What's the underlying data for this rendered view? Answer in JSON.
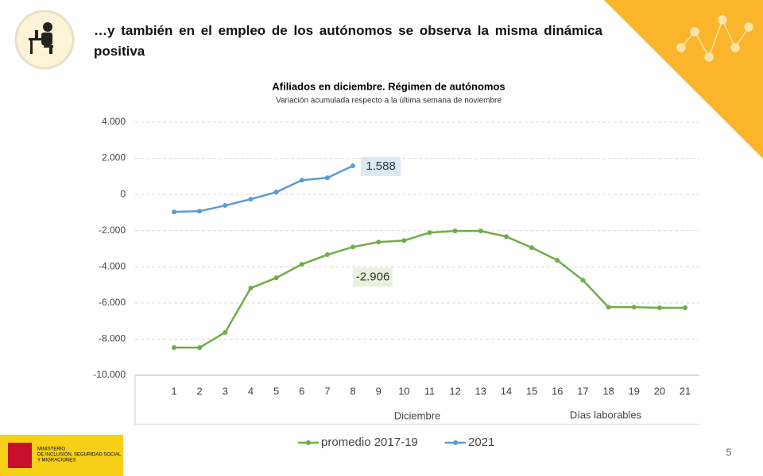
{
  "header": {
    "title": "…y también en el empleo de los autónomos se observa la misma dinámica positiva"
  },
  "footer": {
    "ministry": [
      "MINISTERIO",
      "DE INCLUSIÓN, SEGURIDAD SOCIAL",
      "Y MIGRACIONES"
    ],
    "page": "5"
  },
  "chart_data": {
    "type": "line",
    "title": "Afiliados en diciembre. Régimen de autónomos",
    "subtitle": "Variación acumulada respecto a la última semana de noviembre",
    "categories": [
      "1",
      "2",
      "3",
      "4",
      "5",
      "6",
      "7",
      "8",
      "9",
      "10",
      "11",
      "12",
      "13",
      "14",
      "15",
      "16",
      "17",
      "18",
      "19",
      "20",
      "21"
    ],
    "x_group_labels": [
      "Diciembre",
      "Días laborables"
    ],
    "series": [
      {
        "name": "promedio 2017-19",
        "color": "#70ad47",
        "values": [
          -8470,
          -8470,
          -7630,
          -5180,
          -4610,
          -3860,
          -3330,
          -2906,
          -2630,
          -2550,
          -2110,
          -2020,
          -2020,
          -2330,
          -2940,
          -3640,
          -4740,
          -6230,
          -6230,
          -6270,
          -6270
        ],
        "value_labels": [
          null,
          null,
          null,
          null,
          null,
          null,
          null,
          "-2.906",
          null,
          null,
          null,
          null,
          null,
          null,
          null,
          null,
          null,
          null,
          null,
          null,
          null
        ]
      },
      {
        "name": "2021",
        "color": "#5b9bd5",
        "values": [
          -965,
          -920,
          -610,
          -260,
          130,
          790,
          920,
          1588,
          null,
          null,
          null,
          null,
          null,
          null,
          null,
          null,
          null,
          null,
          null,
          null,
          null
        ],
        "value_labels": [
          null,
          null,
          null,
          null,
          null,
          null,
          null,
          "1.588",
          null,
          null,
          null,
          null,
          null,
          null,
          null,
          null,
          null,
          null,
          null,
          null,
          null
        ]
      }
    ],
    "ylim": [
      -10000,
      4000
    ],
    "yticks": [
      {
        "value": -10000,
        "label": "-10.000"
      },
      {
        "value": -8000,
        "label": "-8.000"
      },
      {
        "value": -6000,
        "label": "-6.000"
      },
      {
        "value": -4000,
        "label": "-4.000"
      },
      {
        "value": -2000,
        "label": "-2.000"
      },
      0,
      {
        "value": 2000,
        "label": "2.000"
      },
      {
        "value": 4000,
        "label": "4.000"
      }
    ],
    "grid": true,
    "legend": "bottom"
  }
}
